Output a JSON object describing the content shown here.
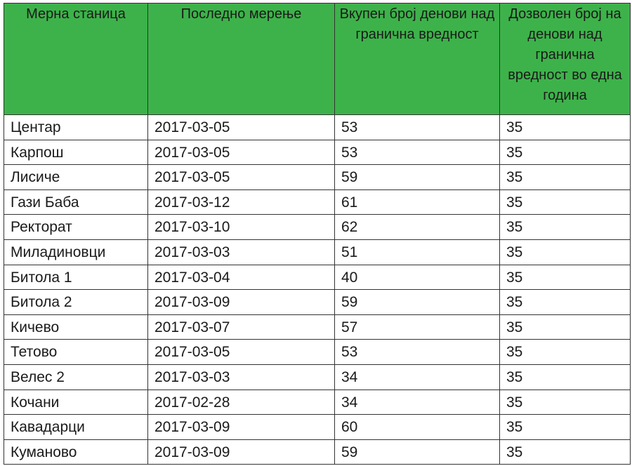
{
  "table": {
    "headers": [
      "Мерна станица",
      "Последно мерење",
      "Вкупен број денови над гранична вредност",
      "Дозволен број на денови над гранична вредност во една година"
    ],
    "rows": [
      {
        "station": "Центар",
        "last_measurement": "2017-03-05",
        "total_days": "53",
        "allowed_days": "35"
      },
      {
        "station": "Карпош",
        "last_measurement": "2017-03-05",
        "total_days": "53",
        "allowed_days": "35"
      },
      {
        "station": "Лисиче",
        "last_measurement": "2017-03-05",
        "total_days": "59",
        "allowed_days": "35"
      },
      {
        "station": "Гази Баба",
        "last_measurement": "2017-03-12",
        "total_days": "61",
        "allowed_days": "35"
      },
      {
        "station": "Ректорат",
        "last_measurement": "2017-03-10",
        "total_days": "62",
        "allowed_days": "35"
      },
      {
        "station": "Миладиновци",
        "last_measurement": "2017-03-03",
        "total_days": "51",
        "allowed_days": "35"
      },
      {
        "station": "Битола 1",
        "last_measurement": "2017-03-04",
        "total_days": "40",
        "allowed_days": "35"
      },
      {
        "station": "Битола 2",
        "last_measurement": "2017-03-09",
        "total_days": "59",
        "allowed_days": "35"
      },
      {
        "station": "Кичево",
        "last_measurement": "2017-03-07",
        "total_days": "57",
        "allowed_days": "35"
      },
      {
        "station": "Тетово",
        "last_measurement": "2017-03-05",
        "total_days": "53",
        "allowed_days": "35"
      },
      {
        "station": "Велес 2",
        "last_measurement": "2017-03-03",
        "total_days": "34",
        "allowed_days": "35"
      },
      {
        "station": "Кочани",
        "last_measurement": "2017-02-28",
        "total_days": "34",
        "allowed_days": "35"
      },
      {
        "station": "Кавадарци",
        "last_measurement": "2017-03-09",
        "total_days": "60",
        "allowed_days": "35"
      },
      {
        "station": "Куманово",
        "last_measurement": "2017-03-09",
        "total_days": "59",
        "allowed_days": "35"
      }
    ]
  },
  "colors": {
    "header_background": "#3db24a",
    "border": "#333333",
    "text": "#1a1a1a"
  }
}
